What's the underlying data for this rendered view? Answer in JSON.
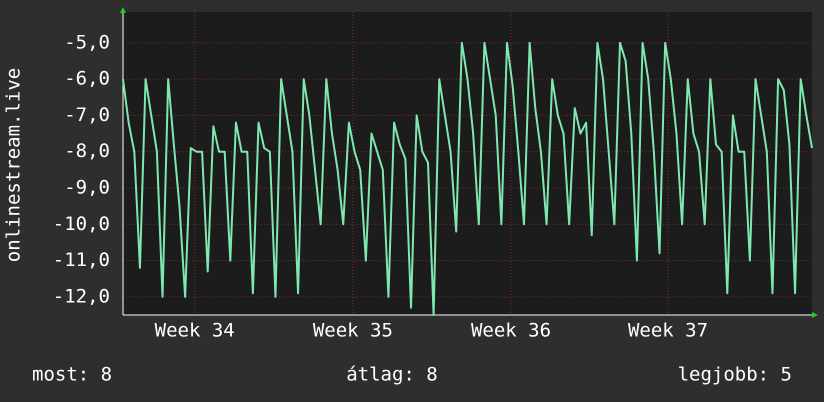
{
  "chart_data": {
    "type": "line",
    "y_label": "onlinestream.live",
    "series": [
      {
        "name": "onlinestream.live",
        "color": "#7ee8b0",
        "values": [
          -6,
          -7.2,
          -8,
          -11.2,
          -6,
          -7,
          -8,
          -12,
          -6,
          -7.8,
          -9.5,
          -12,
          -7.9,
          -8,
          -8,
          -11.3,
          -7.3,
          -8,
          -8,
          -11,
          -7.2,
          -8,
          -8,
          -11.9,
          -7.2,
          -7.9,
          -8,
          -12,
          -6,
          -7,
          -8,
          -11.9,
          -6,
          -7,
          -8.5,
          -10,
          -6,
          -7.5,
          -8.5,
          -10,
          -7.2,
          -8,
          -8.5,
          -11,
          -7.5,
          -8,
          -8.5,
          -12,
          -7.2,
          -7.8,
          -8.2,
          -12.3,
          -7,
          -8,
          -8.3,
          -12.5,
          -6,
          -7,
          -8,
          -10.2,
          -5,
          -6,
          -7.5,
          -10,
          -5,
          -6,
          -7,
          -10,
          -5,
          -6.2,
          -8,
          -10,
          -5,
          -6.8,
          -8,
          -10,
          -6,
          -7,
          -7.5,
          -10,
          -6.8,
          -7.5,
          -7.2,
          -10.3,
          -5,
          -6,
          -8,
          -10,
          -5,
          -5.5,
          -7.5,
          -11,
          -5,
          -6,
          -8,
          -10.8,
          -5,
          -6,
          -7.5,
          -10,
          -6,
          -7.5,
          -8,
          -10,
          -6,
          -7.8,
          -8,
          -11.9,
          -7,
          -8,
          -8,
          -11,
          -6,
          -7,
          -8,
          -11.9,
          -6,
          -6.3,
          -7.8,
          -11.9,
          -6,
          -7,
          -7.9
        ]
      }
    ],
    "xlim": [
      0,
      122
    ],
    "xticks": [
      {
        "value": 12.7,
        "label": "Week 34"
      },
      {
        "value": 40.7,
        "label": "Week 35"
      },
      {
        "value": 68.7,
        "label": "Week 36"
      },
      {
        "value": 96.5,
        "label": "Week 37"
      }
    ],
    "ylim": [
      -12.5,
      -4.15
    ],
    "yticks": [
      {
        "value": -12,
        "label": "-12,0"
      },
      {
        "value": -11,
        "label": "-11,0"
      },
      {
        "value": -10,
        "label": "-10,0"
      },
      {
        "value": -9,
        "label": "-9,0"
      },
      {
        "value": -8,
        "label": "-8,0"
      },
      {
        "value": -7,
        "label": "-7,0"
      },
      {
        "value": -6,
        "label": "-6,0"
      },
      {
        "value": -5,
        "label": "-5,0"
      }
    ],
    "grid": true,
    "footer": [
      "most: 8",
      "átlag: 8",
      "legjobb: 5"
    ]
  }
}
